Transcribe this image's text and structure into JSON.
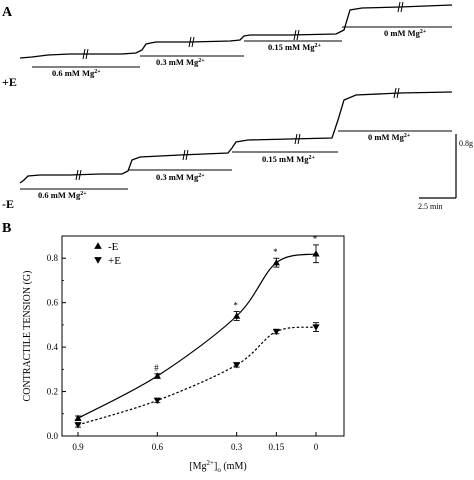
{
  "panel_a": {
    "letter": "A",
    "traces": [
      {
        "condition_label": "+E",
        "segments": [
          {
            "label": "0.6 mM Mg",
            "sup": "2+"
          },
          {
            "label": "0.3 mM Mg",
            "sup": "2+"
          },
          {
            "label": "0.15 mM Mg",
            "sup": "2+"
          },
          {
            "label": "0 mM Mg",
            "sup": "2+"
          }
        ]
      },
      {
        "condition_label": "-E",
        "segments": [
          {
            "label": "0.6 mM Mg",
            "sup": "2+"
          },
          {
            "label": "0.3 mM Mg",
            "sup": "2+"
          },
          {
            "label": "0.15 mM Mg",
            "sup": "2+"
          },
          {
            "label": "0 mM Mg",
            "sup": "2+"
          }
        ]
      }
    ],
    "scale_bar": {
      "tension": "0.8g",
      "time": "2.5 min"
    }
  },
  "panel_b": {
    "letter": "B",
    "chart_data": {
      "type": "scatter",
      "x": [
        0.9,
        0.6,
        0.3,
        0.15,
        0
      ],
      "x_tick_labels": [
        "0.9",
        "0.6",
        "0.3",
        "0.15",
        "0"
      ],
      "xlabel_base": "[Mg",
      "xlabel_sup": "2+",
      "xlabel_close": "]",
      "xlabel_sub": "o",
      "xlabel_unit": " (mM)",
      "ylabel": "CONTRACTILE TENSION (G)",
      "ylim": [
        0,
        0.9
      ],
      "y_ticks": [
        0.0,
        0.2,
        0.4,
        0.6,
        0.8
      ],
      "y_tick_labels": [
        "0.0",
        "0.2",
        "0.4",
        "0.6",
        "0.8"
      ],
      "grid": false,
      "legend_position": "top-left",
      "series": [
        {
          "name": "-E",
          "marker": "triangle-up",
          "fit": "solid",
          "values": [
            0.08,
            0.27,
            0.54,
            0.78,
            0.82
          ],
          "errors": [
            0.01,
            0.01,
            0.02,
            0.02,
            0.04
          ],
          "significance": [
            "",
            "#",
            "*",
            "*",
            "*"
          ]
        },
        {
          "name": "+E",
          "marker": "triangle-down",
          "fit": "dotted",
          "values": [
            0.05,
            0.16,
            0.32,
            0.47,
            0.49
          ],
          "errors": [
            0.01,
            0.01,
            0.01,
            0.01,
            0.02
          ],
          "significance": [
            "",
            "",
            "",
            "",
            ""
          ]
        }
      ]
    }
  }
}
